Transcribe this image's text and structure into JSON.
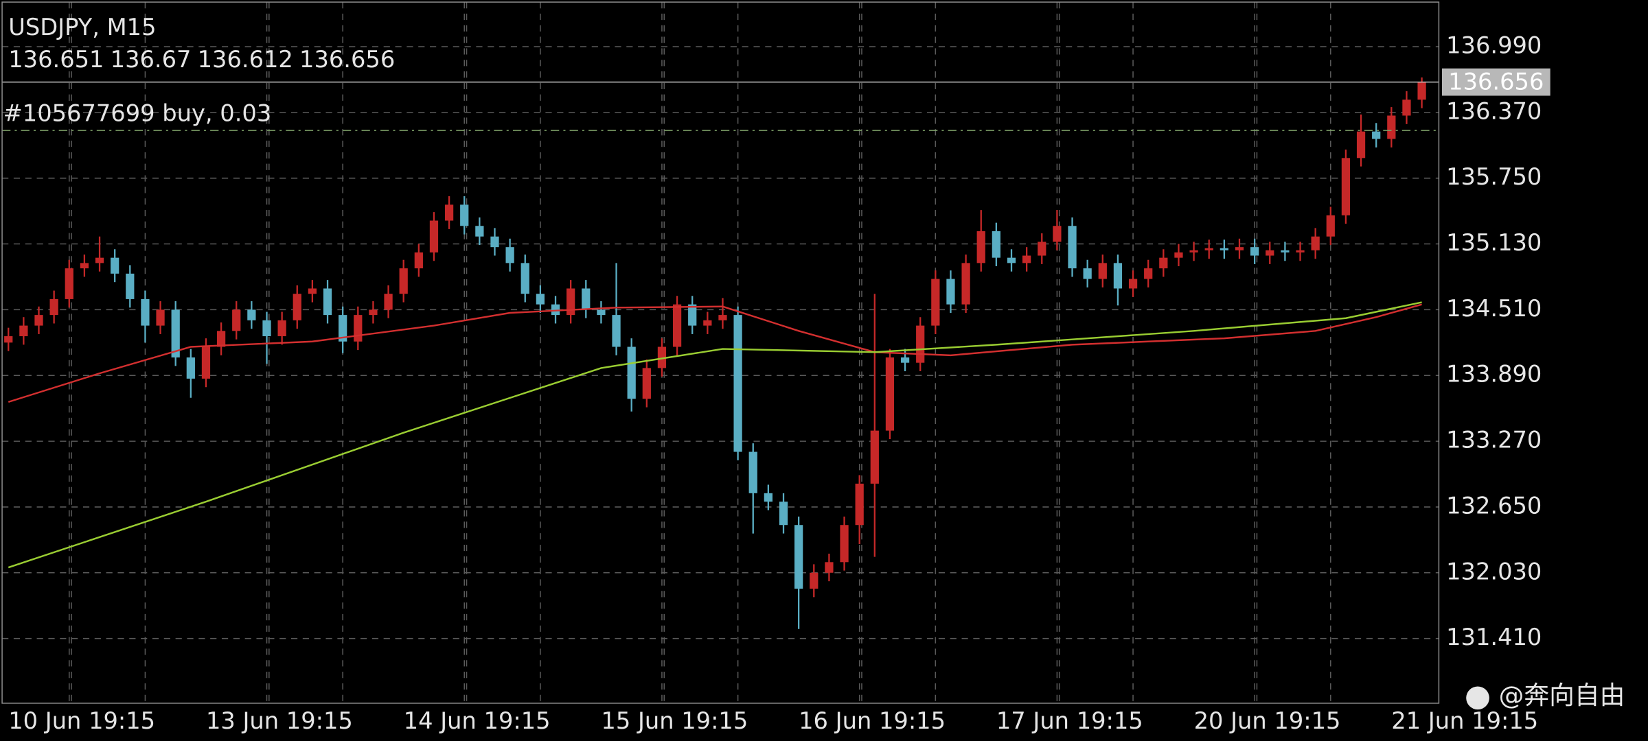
{
  "chart_data": {
    "type": "candlestick",
    "title": "USDJPY, M15",
    "quote": [
      136.651,
      136.67,
      136.612,
      136.656
    ],
    "order_label": "#105677699 buy, 0.03",
    "order_price": 136.2,
    "order_color": "#7fa36a",
    "last_price": 136.656,
    "watermark": "@奔向自由",
    "up_color": "#c62828",
    "down_color": "#5aaec4",
    "grid": true,
    "ylim": [
      130.8,
      137.41
    ],
    "yticks": [
      {
        "value": 136.99,
        "label": "136.990"
      },
      {
        "value": 136.37,
        "label": "136.370"
      },
      {
        "value": 135.75,
        "label": "135.750"
      },
      {
        "value": 135.13,
        "label": "135.130"
      },
      {
        "value": 134.51,
        "label": "134.510"
      },
      {
        "value": 133.89,
        "label": "133.890"
      },
      {
        "value": 133.27,
        "label": "133.270"
      },
      {
        "value": 132.65,
        "label": "132.650"
      },
      {
        "value": 132.03,
        "label": "132.030"
      },
      {
        "value": 131.41,
        "label": "131.410"
      }
    ],
    "categories": [
      "10 Jun 19:15",
      null,
      null,
      null,
      null,
      null,
      null,
      null,
      null,
      null,
      null,
      null,
      null,
      "13 Jun 19:15",
      null,
      null,
      null,
      null,
      null,
      null,
      null,
      null,
      null,
      null,
      null,
      null,
      "14 Jun 19:15",
      null,
      null,
      null,
      null,
      null,
      null,
      null,
      null,
      null,
      null,
      null,
      null,
      "15 Jun 19:15",
      null,
      null,
      null,
      null,
      null,
      null,
      null,
      null,
      null,
      null,
      null,
      null,
      "16 Jun 19:15",
      null,
      null,
      null,
      null,
      null,
      null,
      null,
      null,
      null,
      null,
      null,
      null,
      "17 Jun 19:15",
      null,
      null,
      null,
      null,
      null,
      null,
      null,
      null,
      null,
      null,
      null,
      null,
      "20 Jun 19:15",
      null,
      null,
      null,
      null,
      null,
      null,
      null,
      null,
      null,
      null,
      null,
      null,
      "21 Jun 19:15",
      null,
      null
    ],
    "open": [
      134.2,
      134.26,
      134.36,
      134.46,
      134.61,
      134.9,
      134.95,
      135.0,
      134.85,
      134.61,
      134.36,
      134.51,
      134.06,
      133.86,
      134.16,
      134.31,
      134.51,
      134.41,
      134.26,
      134.41,
      134.66,
      134.71,
      134.46,
      134.21,
      134.46,
      134.51,
      134.66,
      134.9,
      135.05,
      135.35,
      135.5,
      135.3,
      135.2,
      135.1,
      134.95,
      134.66,
      134.56,
      134.46,
      134.71,
      134.51,
      134.46,
      134.16,
      133.67,
      133.96,
      134.16,
      134.56,
      134.36,
      134.41,
      134.46,
      133.17,
      132.78,
      132.7,
      132.48,
      131.88,
      132.03,
      132.13,
      132.48,
      132.87,
      133.37,
      134.06,
      134.01,
      134.36,
      134.8,
      134.56,
      134.95,
      135.25,
      135.0,
      134.95,
      135.02,
      135.15,
      135.3,
      134.9,
      134.8,
      134.95,
      134.71,
      134.8,
      134.9,
      135.0,
      135.05,
      135.07,
      135.09,
      135.07,
      135.1,
      135.02,
      135.07,
      135.05,
      135.07,
      135.2,
      135.4,
      135.94,
      136.19,
      136.12,
      136.34,
      136.49
    ],
    "high": [
      134.34,
      134.44,
      134.54,
      134.69,
      134.98,
      135.03,
      135.2,
      135.08,
      134.93,
      134.69,
      134.59,
      134.59,
      134.14,
      134.24,
      134.39,
      134.59,
      134.59,
      134.49,
      134.49,
      134.74,
      134.79,
      134.79,
      134.54,
      134.54,
      134.59,
      134.74,
      134.98,
      135.13,
      135.43,
      135.58,
      135.58,
      135.38,
      135.28,
      135.18,
      135.03,
      134.74,
      134.64,
      134.79,
      134.79,
      134.59,
      134.95,
      134.24,
      134.04,
      134.24,
      134.64,
      134.64,
      134.49,
      134.62,
      134.54,
      133.25,
      132.86,
      132.78,
      132.56,
      132.11,
      132.21,
      132.56,
      132.95,
      134.66,
      134.14,
      134.14,
      134.44,
      134.88,
      134.88,
      135.03,
      135.45,
      135.33,
      135.08,
      135.1,
      135.23,
      135.45,
      135.38,
      134.98,
      135.03,
      135.03,
      134.88,
      134.98,
      135.08,
      135.13,
      135.15,
      135.17,
      135.17,
      135.18,
      135.18,
      135.15,
      135.15,
      135.15,
      135.28,
      135.48,
      136.02,
      136.35,
      136.27,
      136.42,
      136.57,
      136.7
    ],
    "low": [
      134.12,
      134.18,
      134.28,
      134.38,
      134.53,
      134.82,
      134.87,
      134.77,
      134.53,
      134.2,
      134.28,
      133.98,
      133.68,
      133.78,
      134.08,
      134.23,
      134.33,
      134.0,
      134.18,
      134.33,
      134.58,
      134.38,
      134.1,
      134.13,
      134.38,
      134.43,
      134.58,
      134.82,
      134.97,
      135.27,
      135.22,
      135.12,
      135.02,
      134.87,
      134.58,
      134.48,
      134.38,
      134.38,
      134.43,
      134.38,
      134.08,
      133.55,
      133.59,
      133.88,
      134.08,
      134.28,
      134.28,
      134.33,
      133.09,
      132.4,
      132.62,
      132.4,
      131.5,
      131.8,
      131.95,
      132.05,
      132.3,
      132.18,
      133.29,
      133.93,
      133.93,
      134.28,
      134.48,
      134.48,
      134.87,
      134.92,
      134.87,
      134.87,
      134.94,
      135.07,
      134.82,
      134.72,
      134.72,
      134.55,
      134.63,
      134.72,
      134.82,
      134.92,
      134.97,
      134.99,
      134.99,
      134.99,
      134.94,
      134.94,
      134.97,
      134.97,
      134.99,
      135.12,
      135.32,
      135.86,
      136.04,
      136.04,
      136.26,
      136.41
    ],
    "close": [
      134.26,
      134.36,
      134.46,
      134.61,
      134.9,
      134.95,
      135.0,
      134.85,
      134.61,
      134.36,
      134.51,
      134.06,
      133.86,
      134.16,
      134.31,
      134.51,
      134.41,
      134.26,
      134.41,
      134.66,
      134.71,
      134.46,
      134.21,
      134.46,
      134.51,
      134.66,
      134.9,
      135.05,
      135.35,
      135.5,
      135.3,
      135.2,
      135.1,
      134.95,
      134.66,
      134.56,
      134.46,
      134.71,
      134.51,
      134.46,
      134.16,
      133.67,
      133.96,
      134.16,
      134.56,
      134.36,
      134.41,
      134.46,
      133.17,
      132.78,
      132.7,
      132.48,
      131.88,
      132.03,
      132.13,
      132.48,
      132.87,
      133.37,
      134.06,
      134.01,
      134.36,
      134.8,
      134.56,
      134.95,
      135.25,
      135.0,
      134.95,
      135.02,
      135.15,
      135.3,
      134.9,
      134.8,
      134.95,
      134.71,
      134.8,
      134.9,
      135.0,
      135.05,
      135.07,
      135.09,
      135.07,
      135.1,
      135.02,
      135.07,
      135.05,
      135.07,
      135.2,
      135.4,
      135.94,
      136.19,
      136.12,
      136.34,
      136.49,
      136.656
    ],
    "series": [
      {
        "color": "#d32f2f",
        "x": [
          0,
          6,
          12,
          20,
          28,
          33,
          40,
          47,
          52,
          57,
          62,
          70,
          80,
          86,
          90,
          93
        ],
        "values": [
          133.64,
          133.91,
          134.16,
          134.21,
          134.36,
          134.48,
          134.53,
          134.54,
          134.31,
          134.11,
          134.08,
          134.18,
          134.24,
          134.31,
          134.44,
          134.56
        ]
      },
      {
        "color": "#9acd32",
        "x": [
          0,
          13,
          26,
          39,
          47,
          57,
          65,
          78,
          88,
          93
        ],
        "values": [
          132.08,
          132.7,
          133.35,
          133.96,
          134.14,
          134.11,
          134.18,
          134.31,
          134.43,
          134.58
        ]
      }
    ]
  }
}
